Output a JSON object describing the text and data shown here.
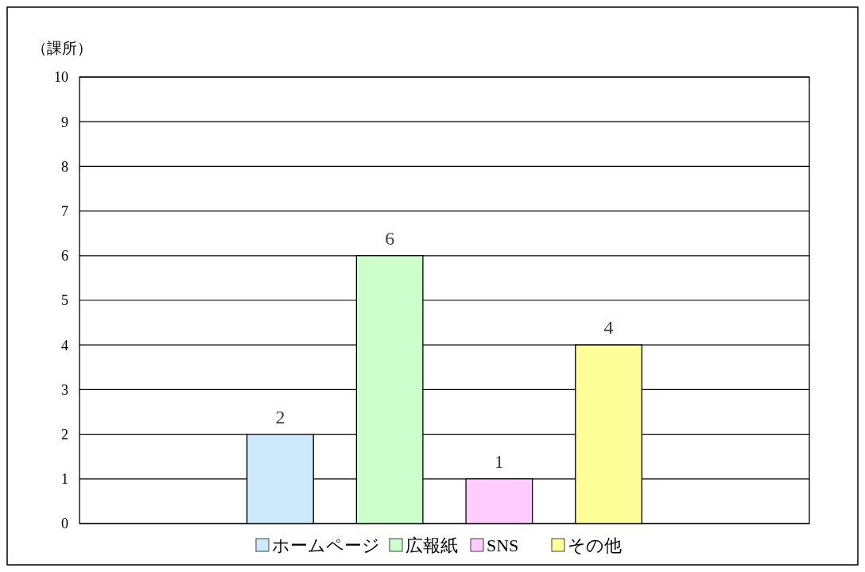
{
  "chart_data": {
    "type": "bar",
    "ylabel": "（課所）",
    "categories": [
      null
    ],
    "series": [
      {
        "name": "ホームページ",
        "color": "#cceafb",
        "values": [
          2
        ]
      },
      {
        "name": "広報紙",
        "color": "#ccffcc",
        "values": [
          6
        ]
      },
      {
        "name": "SNS",
        "color": "#ffccff",
        "values": [
          1
        ]
      },
      {
        "name": "その他",
        "color": "#ffff99",
        "values": [
          4
        ]
      }
    ],
    "ylim": [
      0,
      10
    ],
    "yticks": [
      0,
      1,
      2,
      3,
      4,
      5,
      6,
      7,
      8,
      9,
      10
    ],
    "grid": "y",
    "legend": "bottom",
    "data_labels": true
  }
}
